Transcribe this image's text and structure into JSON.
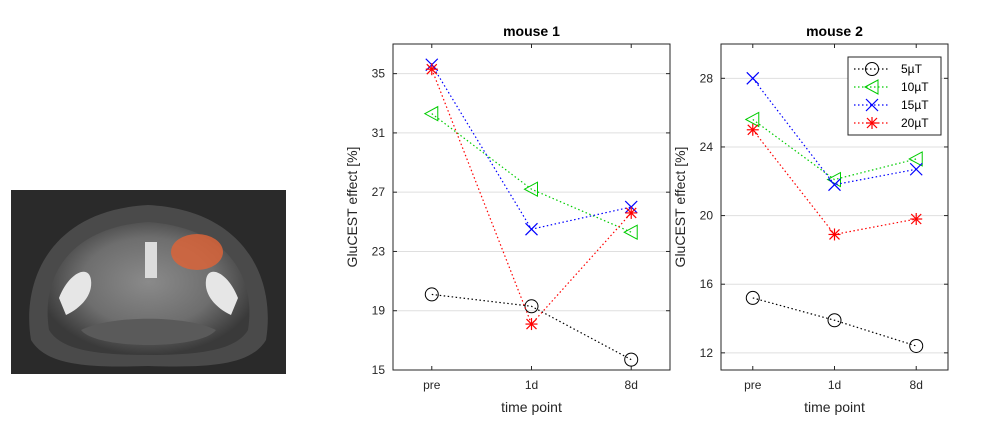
{
  "image_panel": {
    "label": "",
    "roi_color": "#d9643a"
  },
  "legend": [
    {
      "name": "5µT",
      "color": "#000000",
      "marker": "circle"
    },
    {
      "name": "10µT",
      "color": "#00cc00",
      "marker": "triangle-left"
    },
    {
      "name": "15µT",
      "color": "#0000ff",
      "marker": "x"
    },
    {
      "name": "20µT",
      "color": "#ff0000",
      "marker": "star"
    }
  ],
  "chart_data": [
    {
      "type": "line",
      "title": "mouse 1",
      "xlabel": "time point",
      "ylabel": "GluCEST effect [%]",
      "categories": [
        "pre",
        "1d",
        "8d"
      ],
      "ylim": [
        15,
        37
      ],
      "yticks": [
        15,
        19,
        23,
        27,
        31,
        35
      ],
      "series": [
        {
          "name": "5µT",
          "values": [
            20.1,
            19.3,
            15.7
          ]
        },
        {
          "name": "10µT",
          "values": [
            32.3,
            27.2,
            24.3
          ]
        },
        {
          "name": "15µT",
          "values": [
            35.6,
            24.5,
            26.0
          ]
        },
        {
          "name": "20µT",
          "values": [
            35.3,
            18.1,
            25.6
          ]
        }
      ]
    },
    {
      "type": "line",
      "title": "mouse 2",
      "xlabel": "time point",
      "ylabel": "GluCEST effect [%]",
      "categories": [
        "pre",
        "1d",
        "8d"
      ],
      "ylim": [
        11,
        30
      ],
      "yticks": [
        12,
        16,
        20,
        24,
        28
      ],
      "series": [
        {
          "name": "5µT",
          "values": [
            15.2,
            13.9,
            12.4
          ]
        },
        {
          "name": "10µT",
          "values": [
            25.6,
            22.1,
            23.3
          ]
        },
        {
          "name": "15µT",
          "values": [
            28.0,
            21.8,
            22.7
          ]
        },
        {
          "name": "20µT",
          "values": [
            25.0,
            18.9,
            19.8
          ]
        }
      ]
    }
  ]
}
